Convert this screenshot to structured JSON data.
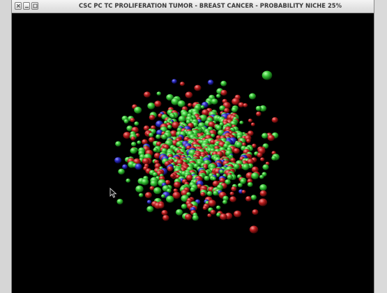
{
  "window": {
    "title": "CSC PC TC PROLIFERATION TUMOR - BREAST CANCER -  PROBABILITY NICHE 25%",
    "background": "#000000",
    "controls": [
      "close-icon",
      "minimize-icon",
      "maximize-icon"
    ]
  },
  "visualization": {
    "kind": "3D cell cluster rendering",
    "cell_colors": {
      "green": "#2fbf2f",
      "red": "#b01818",
      "blue": "#2424b8"
    }
  },
  "pointer": {
    "icon": "mouse-pointer-icon"
  }
}
